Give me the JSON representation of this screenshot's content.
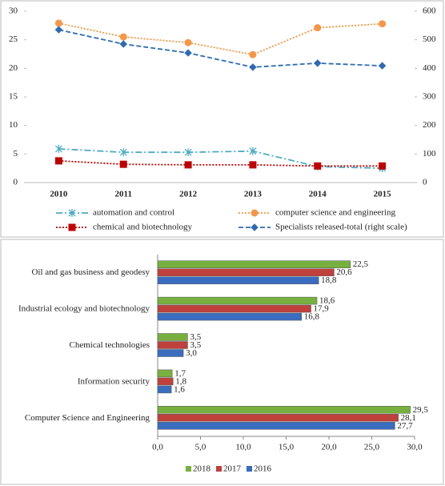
{
  "chart_data": [
    {
      "type": "line",
      "x": [
        "2010",
        "2011",
        "2012",
        "2013",
        "2014",
        "2015"
      ],
      "ylim": [
        0,
        30
      ],
      "yticks": [
        0,
        5,
        10,
        15,
        20,
        25,
        30
      ],
      "y2lim": [
        0,
        600
      ],
      "y2ticks": [
        0,
        100,
        200,
        300,
        400,
        500,
        600
      ],
      "series": [
        {
          "name": "automation and control",
          "color": "#4bacc6",
          "marker": "star",
          "line_style": "dashdot",
          "values": [
            5.9,
            5.3,
            5.3,
            5.5,
            2.8,
            2.5
          ]
        },
        {
          "name": "computer science and engineering",
          "color": "#f79646",
          "marker": "circle",
          "line_style": "dotted",
          "values": [
            27.9,
            25.5,
            24.5,
            22.4,
            27.1,
            27.8
          ]
        },
        {
          "name": "chemical and biotechnology",
          "color": "#c00000",
          "marker": "square",
          "line_style": "dotted",
          "values": [
            3.8,
            3.2,
            3.1,
            3.1,
            2.9,
            2.9
          ]
        },
        {
          "name": "Specialists released-total (right scale)",
          "color": "#2e6bb5",
          "marker": "diamond",
          "line_style": "dashed",
          "axis": "y2",
          "values": [
            535,
            485,
            454,
            404,
            418,
            409
          ]
        }
      ]
    },
    {
      "type": "hbar",
      "categories": [
        "Oil and gas business and geodesy",
        "Industrial ecology and biotechnology",
        "Chemical technologies",
        "Information security",
        "Computer Science and Engineering"
      ],
      "xlim": [
        0,
        30
      ],
      "xticks": [
        {
          "value": 0,
          "label": "0,0"
        },
        {
          "value": 5,
          "label": "5,0"
        },
        {
          "value": 10,
          "label": "10,0"
        },
        {
          "value": 15,
          "label": "15,0"
        },
        {
          "value": 20,
          "label": "20,0"
        },
        {
          "value": 25,
          "label": "25,0"
        },
        {
          "value": 30,
          "label": "30,0"
        }
      ],
      "series": [
        {
          "name": "2018",
          "color": "#77b03e",
          "values": [
            22.5,
            18.6,
            3.5,
            1.7,
            29.5
          ],
          "value_labels": [
            "22,5",
            "18,6",
            "3,5",
            "1,7",
            "29,5"
          ]
        },
        {
          "name": "2017",
          "color": "#c0403c",
          "values": [
            20.6,
            17.9,
            3.5,
            1.8,
            28.1
          ],
          "value_labels": [
            "20,6",
            "17,9",
            "3,5",
            "1,8",
            "28,1"
          ]
        },
        {
          "name": "2016",
          "color": "#3a6cc0",
          "values": [
            18.8,
            16.8,
            3.0,
            1.6,
            27.7
          ],
          "value_labels": [
            "18,8",
            "16,8",
            "3,0",
            "1,6",
            "27,7"
          ]
        }
      ]
    }
  ]
}
